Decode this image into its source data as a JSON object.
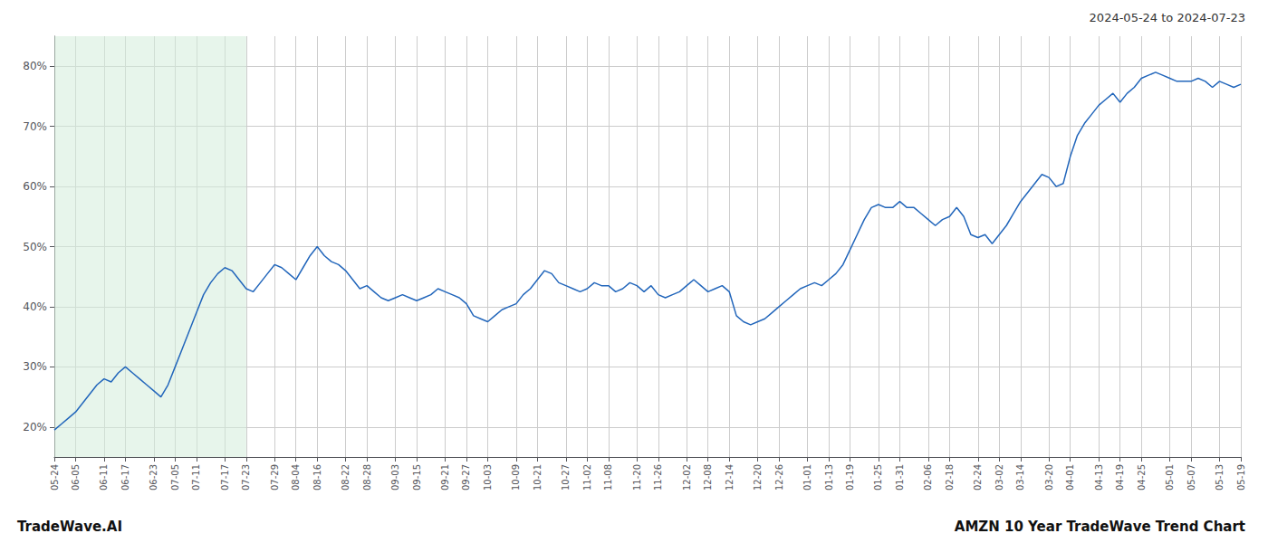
{
  "chart_data": {
    "type": "line",
    "title": "AMZN 10 Year TradeWave Trend Chart",
    "subtitle": "2024-05-24 to 2024-07-23",
    "annotations": [
      "TradeWave.AI"
    ],
    "color": "#2266bb",
    "grid": true,
    "shade": {
      "from": "05-24",
      "to": "07-23",
      "color": "#d4edda"
    },
    "ylim": [
      15,
      85
    ],
    "yticks": [
      {
        "value": 20,
        "label": "20%"
      },
      {
        "value": 30,
        "label": "30%"
      },
      {
        "value": 40,
        "label": "40%"
      },
      {
        "value": 50,
        "label": "50%"
      },
      {
        "value": 60,
        "label": "60%"
      },
      {
        "value": 70,
        "label": "70%"
      },
      {
        "value": 80,
        "label": "80%"
      }
    ],
    "categories": [
      "05-24",
      null,
      null,
      "06-05",
      null,
      null,
      null,
      "06-11",
      null,
      null,
      "06-17",
      null,
      null,
      null,
      "06-23",
      null,
      null,
      "07-05",
      null,
      null,
      "07-11",
      null,
      null,
      null,
      "07-17",
      null,
      null,
      "07-23",
      null,
      null,
      null,
      "07-29",
      null,
      null,
      "08-04",
      null,
      null,
      "08-16",
      null,
      null,
      null,
      "08-22",
      null,
      null,
      "08-28",
      null,
      null,
      null,
      "09-03",
      null,
      null,
      "09-15",
      null,
      null,
      null,
      "09-21",
      null,
      null,
      "09-27",
      null,
      null,
      "10-03",
      null,
      null,
      null,
      "10-09",
      null,
      null,
      "10-21",
      null,
      null,
      null,
      "10-27",
      null,
      null,
      "11-02",
      null,
      null,
      "11-08",
      null,
      null,
      null,
      "11-20",
      null,
      null,
      "11-26",
      null,
      null,
      null,
      "12-02",
      null,
      null,
      "12-08",
      null,
      null,
      "12-14",
      null,
      null,
      null,
      "12-20",
      null,
      null,
      "12-26",
      null,
      null,
      null,
      "01-01",
      null,
      null,
      "01-13",
      null,
      null,
      "01-19",
      null,
      null,
      null,
      "01-25",
      null,
      null,
      "01-31",
      null,
      null,
      null,
      "02-06",
      null,
      null,
      "02-18",
      null,
      null,
      null,
      "02-24",
      null,
      null,
      "03-02",
      null,
      null,
      "03-14",
      null,
      null,
      null,
      "03-20",
      null,
      null,
      "04-01",
      null,
      null,
      null,
      "04-13",
      null,
      null,
      "04-19",
      null,
      null,
      "04-25",
      null,
      null,
      null,
      "05-01",
      null,
      null,
      "05-07",
      null,
      null,
      null,
      "05-13",
      null,
      null,
      "05-19"
    ],
    "values": [
      19.5,
      20.5,
      21.5,
      22.5,
      24.0,
      25.5,
      27.0,
      28.0,
      27.5,
      29.0,
      30.0,
      29.0,
      28.0,
      27.0,
      26.0,
      25.0,
      27.0,
      30.0,
      33.0,
      36.0,
      39.0,
      42.0,
      44.0,
      45.5,
      46.5,
      46.0,
      44.5,
      43.0,
      42.5,
      44.0,
      45.5,
      47.0,
      46.5,
      45.5,
      44.5,
      46.5,
      48.5,
      50.0,
      48.5,
      47.5,
      47.0,
      46.0,
      44.5,
      43.0,
      43.5,
      42.5,
      41.5,
      41.0,
      41.5,
      42.0,
      41.5,
      41.0,
      41.5,
      42.0,
      43.0,
      42.5,
      42.0,
      41.5,
      40.5,
      38.5,
      38.0,
      37.5,
      38.5,
      39.5,
      40.0,
      40.5,
      42.0,
      43.0,
      44.5,
      46.0,
      45.5,
      44.0,
      43.5,
      43.0,
      42.5,
      43.0,
      44.0,
      43.5,
      43.5,
      42.5,
      43.0,
      44.0,
      43.5,
      42.5,
      43.5,
      42.0,
      41.5,
      42.0,
      42.5,
      43.5,
      44.5,
      43.5,
      42.5,
      43.0,
      43.5,
      42.5,
      38.5,
      37.5,
      37.0,
      37.5,
      38.0,
      39.0,
      40.0,
      41.0,
      42.0,
      43.0,
      43.5,
      44.0,
      43.5,
      44.5,
      45.5,
      47.0,
      49.5,
      52.0,
      54.5,
      56.5,
      57.0,
      56.5,
      56.5,
      57.5,
      56.5,
      56.5,
      55.5,
      54.5,
      53.5,
      54.5,
      55.0,
      56.5,
      55.0,
      52.0,
      51.5,
      52.0,
      50.5,
      52.0,
      53.5,
      55.5,
      57.5,
      59.0,
      60.5,
      62.0,
      61.5,
      60.0,
      60.5,
      65.0,
      68.5,
      70.5,
      72.0,
      73.5,
      74.5,
      75.5,
      74.0,
      75.5,
      76.5,
      78.0,
      78.5,
      79.0,
      78.5,
      78.0,
      77.5,
      77.5,
      77.5,
      78.0,
      77.5,
      76.5,
      77.5,
      77.0,
      76.5,
      77.0
    ]
  }
}
